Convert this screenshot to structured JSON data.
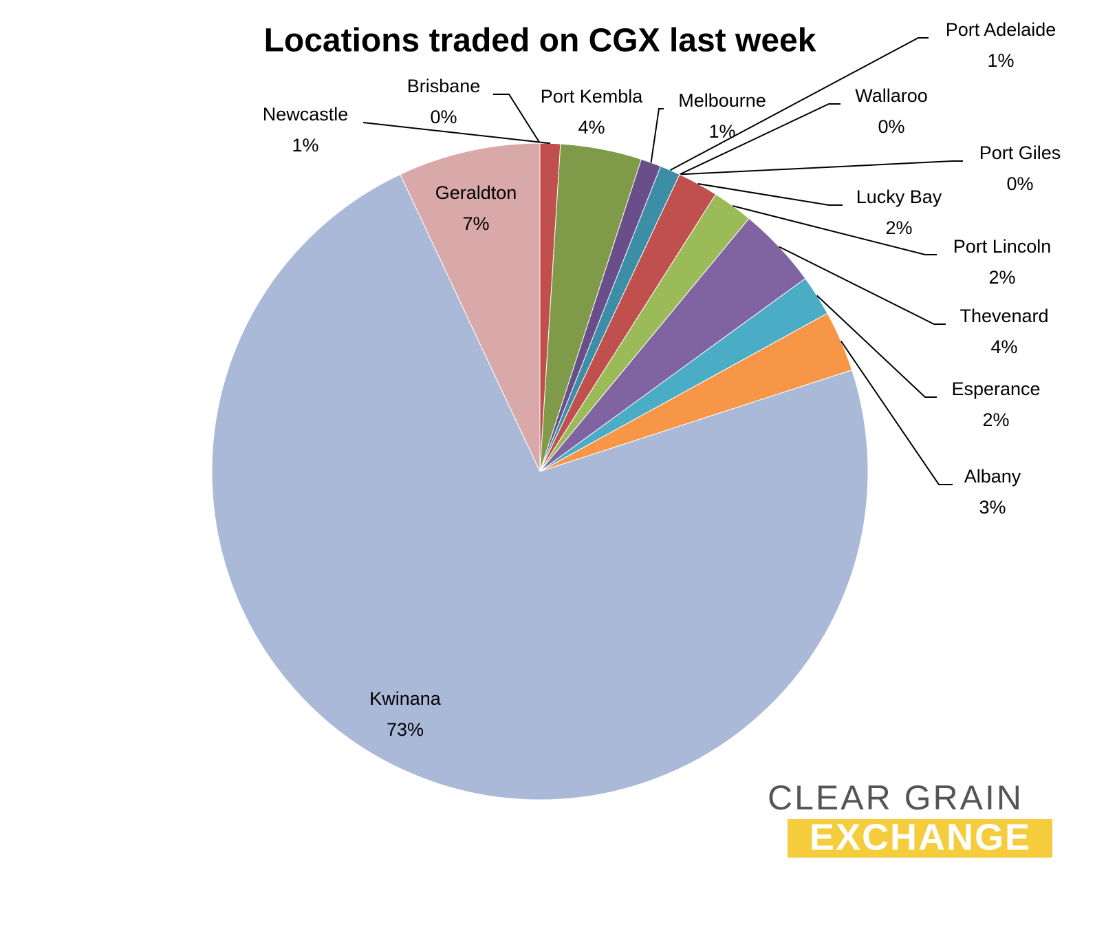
{
  "chart_data": {
    "type": "pie",
    "title": "Locations traded on CGX last week",
    "categories": [
      "Brisbane",
      "Newcastle",
      "Port Kembla",
      "Melbourne",
      "Port Adelaide",
      "Wallaroo",
      "Port Giles",
      "Lucky Bay",
      "Port Lincoln",
      "Thevenard",
      "Esperance",
      "Albany",
      "Kwinana",
      "Geraldton"
    ],
    "values": [
      0,
      1,
      4,
      1,
      1,
      0,
      0,
      2,
      2,
      4,
      2,
      3,
      73,
      7
    ],
    "value_labels": [
      "0%",
      "1%",
      "4%",
      "1%",
      "1%",
      "0%",
      "0%",
      "2%",
      "2%",
      "4%",
      "2%",
      "3%",
      "73%",
      "7%"
    ],
    "colors": [
      "#4f81bd",
      "#c0504d",
      "#7f9a48",
      "#6a4e8a",
      "#3b8ea5",
      "#e88a3a",
      "#4f81bd",
      "#c0504d",
      "#9bbb59",
      "#8064a2",
      "#4bacc6",
      "#f79646",
      "#aab9d7",
      "#d9a9a9"
    ]
  },
  "logo": {
    "line1": "CLEAR GRAIN",
    "line2": "EXCHANGE"
  }
}
